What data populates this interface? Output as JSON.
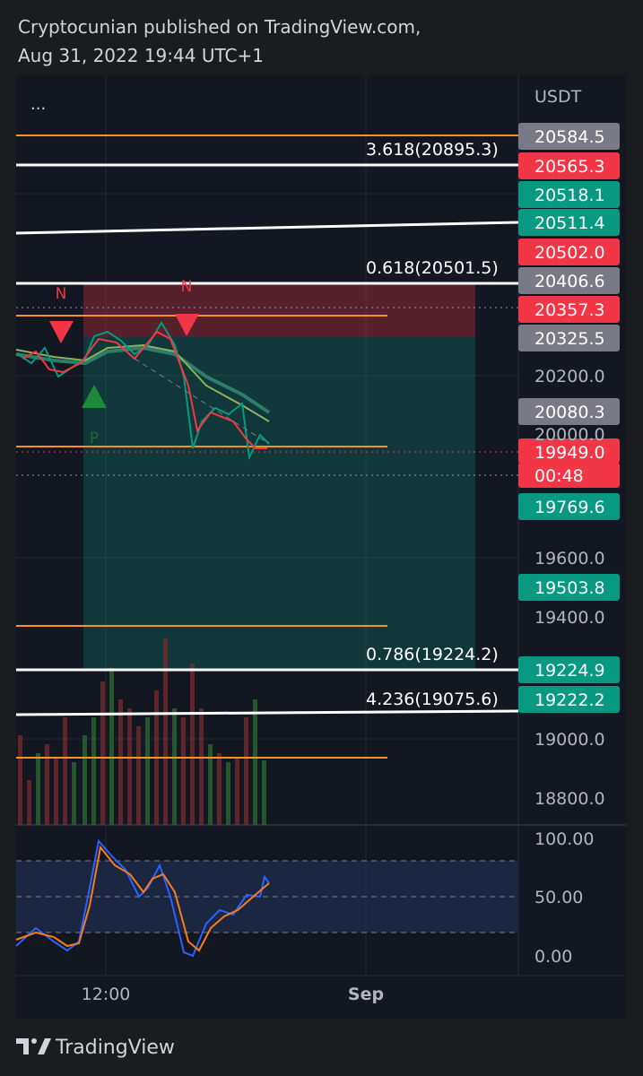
{
  "header": {
    "publisher": "Cryptocunian published on TradingView.com,",
    "timestamp": "Aug 31, 2022 19:44 UTC+1"
  },
  "chart": {
    "menu": "...",
    "currency": "USDT",
    "price_labels": [
      "20584.5",
      "20565.3",
      "20518.1",
      "20511.4",
      "20502.0",
      "20406.6",
      "20357.3",
      "20325.5",
      "20080.3",
      "19949.0",
      "00:48",
      "19769.6",
      "19503.8",
      "19224.9",
      "19222.2"
    ],
    "price_ticks": [
      "20200.0",
      "20000.0",
      "19600.0",
      "19400.0",
      "19000.0",
      "18800.0"
    ],
    "fib_labels": [
      "3.618(20895.3)",
      "0.618(20501.5)",
      "0.786(19224.2)",
      "4.236(19075.6)"
    ],
    "pattern_labels": [
      "N",
      "N",
      "P"
    ],
    "oscillator_ticks": [
      "100.00",
      "50.00",
      "0.00"
    ],
    "time_ticks": [
      "12:00",
      "Sep"
    ]
  },
  "footer": {
    "brand": "TradingView"
  }
}
